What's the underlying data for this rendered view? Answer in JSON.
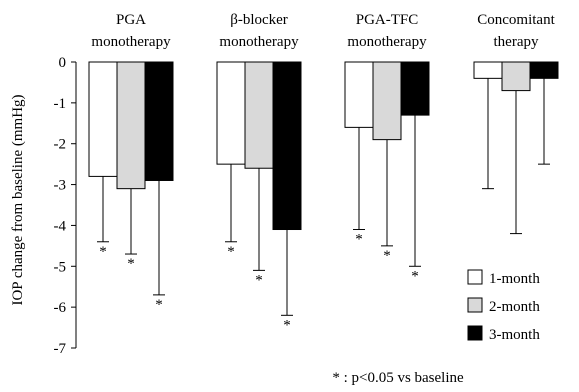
{
  "chart_data": {
    "type": "bar",
    "ylabel": "IOP change from baseline (mmHg)",
    "ylim": [
      -7,
      0
    ],
    "yticks": [
      0,
      -1,
      -2,
      -3,
      -4,
      -5,
      -6,
      -7
    ],
    "grid": false,
    "categories": [
      [
        "PGA",
        "monotherapy"
      ],
      [
        "β-blocker",
        "monotherapy"
      ],
      [
        "PGA-TFC",
        "monotherapy"
      ],
      [
        "Concomitant",
        "therapy"
      ]
    ],
    "series": [
      {
        "name": "1-month",
        "color": "#ffffff",
        "values": [
          -2.8,
          -2.5,
          -1.6,
          -0.4
        ],
        "error": [
          1.6,
          1.9,
          2.5,
          2.7
        ],
        "significant": [
          true,
          true,
          true,
          false
        ]
      },
      {
        "name": "2-month",
        "color": "#d9d9d9",
        "values": [
          -3.1,
          -2.6,
          -1.9,
          -0.7
        ],
        "error": [
          1.6,
          2.5,
          2.6,
          3.5
        ],
        "significant": [
          true,
          true,
          true,
          false
        ]
      },
      {
        "name": "3-month",
        "color": "#000000",
        "values": [
          -2.9,
          -4.1,
          -1.3,
          -0.4
        ],
        "error": [
          2.8,
          2.1,
          3.7,
          2.1
        ],
        "significant": [
          true,
          true,
          true,
          false
        ]
      }
    ],
    "legend_position": "bottom-right",
    "significance_marker": "*",
    "footnote": "* : p<0.05 vs baseline"
  }
}
